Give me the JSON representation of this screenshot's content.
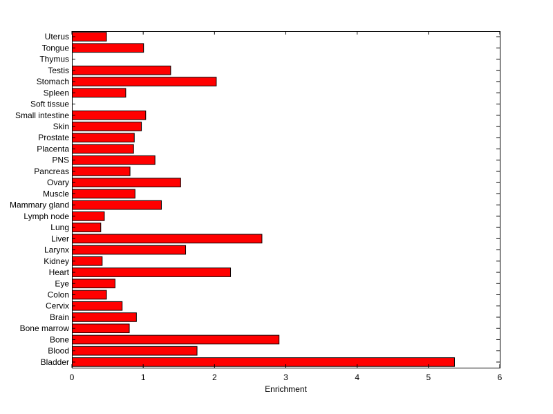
{
  "chart_data": {
    "type": "bar",
    "orientation": "horizontal",
    "title": "",
    "xlabel": "Enrichment",
    "ylabel": "",
    "xlim": [
      0,
      6
    ],
    "xticks": [
      0,
      1,
      2,
      3,
      4,
      5,
      6
    ],
    "grid": false,
    "legend": "none",
    "bar_color": "#ff0000",
    "categories": [
      "Bladder",
      "Blood",
      "Bone",
      "Bone marrow",
      "Brain",
      "Cervix",
      "Colon",
      "Eye",
      "Heart",
      "Kidney",
      "Larynx",
      "Liver",
      "Lung",
      "Lymph node",
      "Mammary gland",
      "Muscle",
      "Ovary",
      "Pancreas",
      "PNS",
      "Placenta",
      "Prostate",
      "Skin",
      "Small intestine",
      "Soft tissue",
      "Spleen",
      "Stomach",
      "Testis",
      "Thymus",
      "Tongue",
      "Uterus"
    ],
    "values": [
      5.36,
      1.75,
      2.9,
      0.8,
      0.9,
      0.7,
      0.48,
      0.6,
      2.22,
      0.42,
      1.59,
      2.66,
      0.4,
      0.45,
      1.25,
      0.88,
      1.52,
      0.81,
      1.16,
      0.86,
      0.87,
      0.97,
      1.03,
      0,
      0.75,
      2.02,
      1.38,
      0,
      1.0,
      0.48
    ]
  }
}
